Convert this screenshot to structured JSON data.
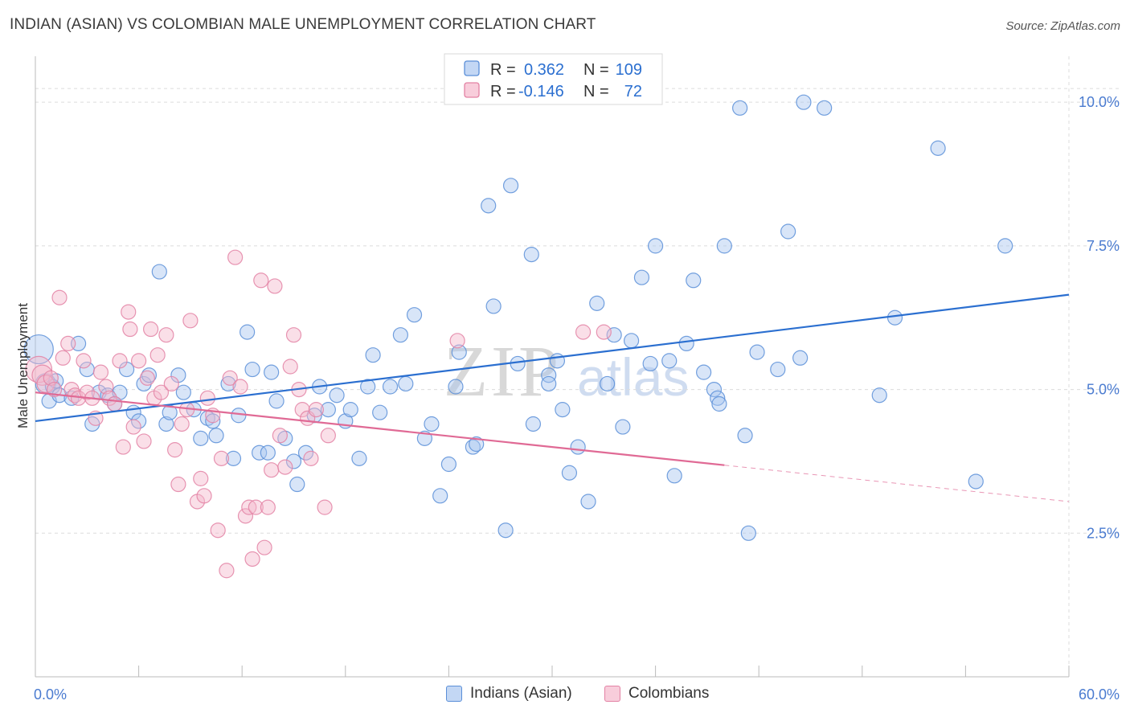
{
  "title": "INDIAN (ASIAN) VS COLOMBIAN MALE UNEMPLOYMENT CORRELATION CHART",
  "source": "Source: ZipAtlas.com",
  "watermark": {
    "zip": "ZIP",
    "atlas": "atlas"
  },
  "colors": {
    "blue_fill": "#a9c6ef",
    "blue_stroke": "#5b8fd8",
    "blue_line": "#2b6fd0",
    "pink_fill": "#f5b8cc",
    "pink_stroke": "#e382a4",
    "pink_line": "#e06a95",
    "grid": "#dcdcdc",
    "tick_text": "#4a7bd0"
  },
  "legend": {
    "rows": [
      {
        "r_label": "R =",
        "r_value": "0.362",
        "n_label": "N =",
        "n_value": "109",
        "series": "blue"
      },
      {
        "r_label": "R =",
        "r_value": "-0.146",
        "n_label": "N =",
        "n_value": "72",
        "series": "pink"
      }
    ]
  },
  "chart_data": {
    "type": "scatter",
    "title": "INDIAN (ASIAN) VS COLOMBIAN MALE UNEMPLOYMENT CORRELATION CHART",
    "xlabel": "",
    "ylabel": "Male Unemployment",
    "xlim": [
      0,
      60
    ],
    "ylim": [
      0,
      10.8
    ],
    "x_tick_labels": [
      {
        "value": 0,
        "label": "0.0%"
      },
      {
        "value": 60,
        "label": "60.0%"
      }
    ],
    "y_ticks": [
      {
        "value": 2.5,
        "label": "2.5%"
      },
      {
        "value": 5.0,
        "label": "5.0%"
      },
      {
        "value": 7.5,
        "label": "7.5%"
      },
      {
        "value": 10.0,
        "label": "10.0%"
      }
    ],
    "grid": true,
    "legend_position": "top-center",
    "series": [
      {
        "name": "Indians (Asian)",
        "color": "blue",
        "trend": {
          "x": [
            0,
            60
          ],
          "y": [
            4.45,
            6.65
          ],
          "dashed_from": null
        },
        "points": [
          [
            0.2,
            5.7,
            2
          ],
          [
            0.6,
            5.1,
            1.4
          ],
          [
            0.8,
            4.8,
            1
          ],
          [
            1.0,
            5.05,
            1
          ],
          [
            1.2,
            5.15,
            1
          ],
          [
            1.4,
            4.9,
            1
          ],
          [
            2.1,
            4.85,
            1
          ],
          [
            2.5,
            5.8,
            1
          ],
          [
            3.0,
            5.35,
            1
          ],
          [
            3.3,
            4.4,
            1
          ],
          [
            3.7,
            4.95,
            1
          ],
          [
            4.2,
            4.9,
            1
          ],
          [
            4.6,
            4.75,
            1
          ],
          [
            4.9,
            4.95,
            1
          ],
          [
            5.3,
            5.35,
            1
          ],
          [
            5.7,
            4.6,
            1
          ],
          [
            6.0,
            4.45,
            1
          ],
          [
            6.3,
            5.1,
            1
          ],
          [
            6.6,
            5.25,
            1
          ],
          [
            7.2,
            7.05,
            1
          ],
          [
            7.6,
            4.4,
            1
          ],
          [
            7.8,
            4.6,
            1
          ],
          [
            8.3,
            5.25,
            1
          ],
          [
            8.6,
            4.95,
            1
          ],
          [
            9.2,
            4.65,
            1
          ],
          [
            9.6,
            4.15,
            1
          ],
          [
            10.0,
            4.5,
            1
          ],
          [
            10.3,
            4.45,
            1
          ],
          [
            10.5,
            4.2,
            1
          ],
          [
            11.2,
            5.1,
            1
          ],
          [
            11.5,
            3.8,
            1
          ],
          [
            11.8,
            4.55,
            1
          ],
          [
            12.3,
            6.0,
            1
          ],
          [
            12.6,
            5.35,
            1
          ],
          [
            13.0,
            3.9,
            1
          ],
          [
            13.5,
            3.9,
            1
          ],
          [
            13.7,
            5.3,
            1
          ],
          [
            14.0,
            4.8,
            1
          ],
          [
            14.5,
            4.15,
            1
          ],
          [
            15.0,
            3.75,
            1
          ],
          [
            15.2,
            3.35,
            1
          ],
          [
            15.7,
            3.9,
            1
          ],
          [
            16.2,
            4.55,
            1
          ],
          [
            16.5,
            5.05,
            1
          ],
          [
            17.0,
            4.65,
            1
          ],
          [
            17.5,
            4.9,
            1
          ],
          [
            18.0,
            4.45,
            1
          ],
          [
            18.3,
            4.65,
            1
          ],
          [
            18.8,
            3.8,
            1
          ],
          [
            19.3,
            5.05,
            1
          ],
          [
            19.6,
            5.6,
            1
          ],
          [
            20.0,
            4.6,
            1
          ],
          [
            20.6,
            5.05,
            1
          ],
          [
            21.2,
            5.95,
            1
          ],
          [
            21.5,
            5.1,
            1
          ],
          [
            22.0,
            6.3,
            1
          ],
          [
            22.6,
            4.15,
            1
          ],
          [
            23.0,
            4.4,
            1
          ],
          [
            23.5,
            3.15,
            1
          ],
          [
            24.0,
            3.7,
            1
          ],
          [
            24.4,
            5.05,
            1
          ],
          [
            24.6,
            5.65,
            1
          ],
          [
            25.4,
            4.0,
            1
          ],
          [
            25.6,
            4.05,
            1
          ],
          [
            26.3,
            8.2,
            1
          ],
          [
            26.6,
            6.45,
            1
          ],
          [
            27.3,
            2.55,
            1
          ],
          [
            27.6,
            8.55,
            1
          ],
          [
            28.0,
            5.45,
            1
          ],
          [
            28.8,
            7.35,
            1
          ],
          [
            28.9,
            4.4,
            1
          ],
          [
            29.8,
            5.25,
            1
          ],
          [
            29.8,
            5.1,
            1
          ],
          [
            30.3,
            5.5,
            1
          ],
          [
            30.6,
            4.65,
            1
          ],
          [
            31.0,
            3.55,
            1
          ],
          [
            31.5,
            4.0,
            1
          ],
          [
            32.1,
            3.05,
            1
          ],
          [
            32.6,
            6.5,
            1
          ],
          [
            33.2,
            5.1,
            1
          ],
          [
            33.6,
            5.95,
            1
          ],
          [
            34.1,
            4.35,
            1
          ],
          [
            34.6,
            5.85,
            1
          ],
          [
            35.2,
            6.95,
            1
          ],
          [
            35.7,
            5.45,
            1
          ],
          [
            36.0,
            7.5,
            1
          ],
          [
            36.8,
            5.5,
            1
          ],
          [
            37.1,
            3.5,
            1
          ],
          [
            37.8,
            5.8,
            1
          ],
          [
            38.2,
            6.9,
            1
          ],
          [
            38.8,
            5.3,
            1
          ],
          [
            39.4,
            5.0,
            1
          ],
          [
            39.6,
            4.85,
            1
          ],
          [
            39.7,
            4.75,
            1
          ],
          [
            40.0,
            7.5,
            1
          ],
          [
            40.9,
            9.9,
            1
          ],
          [
            41.2,
            4.2,
            1
          ],
          [
            41.4,
            2.5,
            1
          ],
          [
            41.9,
            5.65,
            1
          ],
          [
            43.1,
            5.35,
            1
          ],
          [
            43.7,
            7.75,
            1
          ],
          [
            44.4,
            5.55,
            1
          ],
          [
            44.6,
            10.0,
            1
          ],
          [
            45.8,
            9.9,
            1
          ],
          [
            49.0,
            4.9,
            1
          ],
          [
            49.9,
            6.25,
            1
          ],
          [
            52.4,
            9.2,
            1
          ],
          [
            54.6,
            3.4,
            1
          ],
          [
            56.3,
            7.5,
            1
          ]
        ]
      },
      {
        "name": "Colombians",
        "color": "pink",
        "trend": {
          "x": [
            0,
            60
          ],
          "y": [
            4.95,
            3.05
          ],
          "solid_until": 40.0
        },
        "points": [
          [
            0.2,
            5.35,
            1.8
          ],
          [
            0.4,
            5.25,
            1.4
          ],
          [
            0.6,
            5.1,
            1.2
          ],
          [
            0.9,
            5.2,
            1
          ],
          [
            1.1,
            5.0,
            1
          ],
          [
            1.4,
            6.6,
            1
          ],
          [
            1.6,
            5.55,
            1
          ],
          [
            1.9,
            5.8,
            1
          ],
          [
            2.1,
            5.0,
            1
          ],
          [
            2.3,
            4.9,
            1
          ],
          [
            2.5,
            4.85,
            1
          ],
          [
            2.8,
            5.5,
            1
          ],
          [
            3.0,
            4.95,
            1
          ],
          [
            3.3,
            4.85,
            1
          ],
          [
            3.5,
            4.5,
            1
          ],
          [
            3.8,
            5.3,
            1
          ],
          [
            4.1,
            5.05,
            1
          ],
          [
            4.3,
            4.85,
            1
          ],
          [
            4.6,
            4.75,
            1
          ],
          [
            4.9,
            5.5,
            1
          ],
          [
            5.1,
            4.0,
            1
          ],
          [
            5.4,
            6.35,
            1
          ],
          [
            5.5,
            6.05,
            1
          ],
          [
            5.7,
            4.35,
            1
          ],
          [
            6.0,
            5.5,
            1
          ],
          [
            6.3,
            4.1,
            1
          ],
          [
            6.5,
            5.2,
            1
          ],
          [
            6.7,
            6.05,
            1
          ],
          [
            6.9,
            4.85,
            1
          ],
          [
            7.1,
            5.6,
            1
          ],
          [
            7.3,
            4.95,
            1
          ],
          [
            7.6,
            5.95,
            1
          ],
          [
            7.9,
            5.1,
            1
          ],
          [
            8.1,
            3.95,
            1
          ],
          [
            8.3,
            3.35,
            1
          ],
          [
            8.5,
            4.4,
            1
          ],
          [
            8.8,
            4.65,
            1
          ],
          [
            9.0,
            6.2,
            1
          ],
          [
            9.4,
            3.05,
            1
          ],
          [
            9.6,
            3.45,
            1
          ],
          [
            9.8,
            3.15,
            1
          ],
          [
            10.0,
            4.85,
            1
          ],
          [
            10.3,
            4.55,
            1
          ],
          [
            10.6,
            2.55,
            1
          ],
          [
            10.8,
            3.8,
            1
          ],
          [
            11.1,
            1.85,
            1
          ],
          [
            11.3,
            5.2,
            1
          ],
          [
            11.6,
            7.3,
            1
          ],
          [
            11.9,
            5.05,
            1
          ],
          [
            12.2,
            2.8,
            1
          ],
          [
            12.4,
            2.95,
            1
          ],
          [
            12.6,
            2.05,
            1
          ],
          [
            12.8,
            2.95,
            1
          ],
          [
            13.1,
            6.9,
            1
          ],
          [
            13.3,
            2.25,
            1
          ],
          [
            13.5,
            2.95,
            1
          ],
          [
            13.7,
            3.6,
            1
          ],
          [
            13.9,
            6.8,
            1
          ],
          [
            14.2,
            4.2,
            1
          ],
          [
            14.5,
            3.65,
            1
          ],
          [
            14.8,
            5.4,
            1
          ],
          [
            15.0,
            5.95,
            1
          ],
          [
            15.3,
            5.0,
            1
          ],
          [
            15.5,
            4.65,
            1
          ],
          [
            15.8,
            4.5,
            1
          ],
          [
            16.0,
            3.8,
            1
          ],
          [
            16.3,
            4.65,
            1
          ],
          [
            16.8,
            2.95,
            1
          ],
          [
            17.0,
            4.2,
            1
          ],
          [
            24.5,
            5.85,
            1
          ],
          [
            31.8,
            6.0,
            1
          ],
          [
            33.0,
            6.0,
            1
          ]
        ]
      }
    ]
  },
  "bottom_legend": [
    {
      "label": "Indians (Asian)",
      "series": "blue"
    },
    {
      "label": "Colombians",
      "series": "pink"
    }
  ]
}
